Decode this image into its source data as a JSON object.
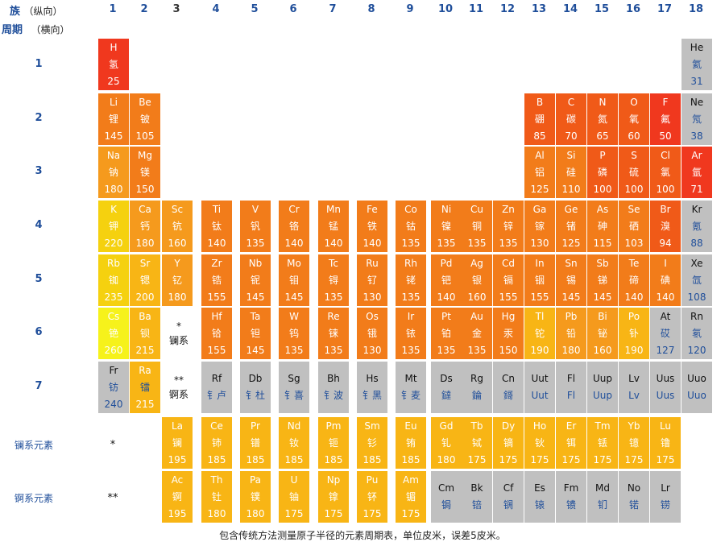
{
  "header": {
    "group_label": "族",
    "group_sub": "（纵向）",
    "period_label": "周期",
    "period_sub": "（横向）"
  },
  "groups": [
    "1",
    "2",
    "3",
    "4",
    "5",
    "6",
    "7",
    "8",
    "9",
    "10",
    "11",
    "12",
    "13",
    "14",
    "15",
    "16",
    "17",
    "18"
  ],
  "periods": [
    "1",
    "2",
    "3",
    "4",
    "5",
    "6",
    "7"
  ],
  "series_labels": {
    "lanthanides": "镧系元素",
    "actinides": "锕系元素",
    "lan_marker": "*",
    "act_marker": "**"
  },
  "notes": {
    "lan": [
      "*",
      "镧系"
    ],
    "act": [
      "**",
      "锕系"
    ]
  },
  "colors": {
    "red": "#f0381e",
    "redorange": "#f05a18",
    "orange": "#f27c1a",
    "lightorange": "#f59a1d",
    "amber": "#f8b515",
    "yellow": "#f5d10f",
    "brightyellow": "#f6f21b",
    "gray": "#c0c0c0"
  },
  "elements": [
    {
      "s": "H",
      "n": "氢",
      "v": "25",
      "row": 1,
      "col": 1,
      "c": "red"
    },
    {
      "s": "He",
      "n": "氦",
      "v": "31",
      "row": 1,
      "col": 18,
      "c": "gray"
    },
    {
      "s": "Li",
      "n": "锂",
      "v": "145",
      "row": 2,
      "col": 1,
      "c": "orange"
    },
    {
      "s": "Be",
      "n": "铍",
      "v": "105",
      "row": 2,
      "col": 2,
      "c": "orange"
    },
    {
      "s": "B",
      "n": "硼",
      "v": "85",
      "row": 2,
      "col": 13,
      "c": "redorange"
    },
    {
      "s": "C",
      "n": "碳",
      "v": "70",
      "row": 2,
      "col": 14,
      "c": "redorange"
    },
    {
      "s": "N",
      "n": "氮",
      "v": "65",
      "row": 2,
      "col": 15,
      "c": "redorange"
    },
    {
      "s": "O",
      "n": "氧",
      "v": "60",
      "row": 2,
      "col": 16,
      "c": "redorange"
    },
    {
      "s": "F",
      "n": "氟",
      "v": "50",
      "row": 2,
      "col": 17,
      "c": "red"
    },
    {
      "s": "Ne",
      "n": "氖",
      "v": "38",
      "row": 2,
      "col": 18,
      "c": "gray"
    },
    {
      "s": "Na",
      "n": "钠",
      "v": "180",
      "row": 3,
      "col": 1,
      "c": "lightorange"
    },
    {
      "s": "Mg",
      "n": "镁",
      "v": "150",
      "row": 3,
      "col": 2,
      "c": "orange"
    },
    {
      "s": "Al",
      "n": "铝",
      "v": "125",
      "row": 3,
      "col": 13,
      "c": "orange"
    },
    {
      "s": "Si",
      "n": "硅",
      "v": "110",
      "row": 3,
      "col": 14,
      "c": "orange"
    },
    {
      "s": "P",
      "n": "磷",
      "v": "100",
      "row": 3,
      "col": 15,
      "c": "redorange"
    },
    {
      "s": "S",
      "n": "硫",
      "v": "100",
      "row": 3,
      "col": 16,
      "c": "redorange"
    },
    {
      "s": "Cl",
      "n": "氯",
      "v": "100",
      "row": 3,
      "col": 17,
      "c": "redorange"
    },
    {
      "s": "Ar",
      "n": "氩",
      "v": "71",
      "row": 3,
      "col": 18,
      "c": "red"
    },
    {
      "s": "K",
      "n": "钾",
      "v": "220",
      "row": 4,
      "col": 1,
      "c": "yellow"
    },
    {
      "s": "Ca",
      "n": "钙",
      "v": "180",
      "row": 4,
      "col": 2,
      "c": "lightorange"
    },
    {
      "s": "Sc",
      "n": "钪",
      "v": "160",
      "row": 4,
      "col": 3,
      "c": "lightorange"
    },
    {
      "s": "Ti",
      "n": "钛",
      "v": "140",
      "row": 4,
      "col": 4,
      "c": "orange"
    },
    {
      "s": "V",
      "n": "钒",
      "v": "135",
      "row": 4,
      "col": 5,
      "c": "orange"
    },
    {
      "s": "Cr",
      "n": "铬",
      "v": "140",
      "row": 4,
      "col": 6,
      "c": "orange"
    },
    {
      "s": "Mn",
      "n": "锰",
      "v": "140",
      "row": 4,
      "col": 7,
      "c": "orange"
    },
    {
      "s": "Fe",
      "n": "铁",
      "v": "140",
      "row": 4,
      "col": 8,
      "c": "orange"
    },
    {
      "s": "Co",
      "n": "钴",
      "v": "135",
      "row": 4,
      "col": 9,
      "c": "orange"
    },
    {
      "s": "Ni",
      "n": "镍",
      "v": "135",
      "row": 4,
      "col": 10,
      "c": "orange"
    },
    {
      "s": "Cu",
      "n": "铜",
      "v": "135",
      "row": 4,
      "col": 11,
      "c": "orange"
    },
    {
      "s": "Zn",
      "n": "锌",
      "v": "135",
      "row": 4,
      "col": 12,
      "c": "orange"
    },
    {
      "s": "Ga",
      "n": "镓",
      "v": "130",
      "row": 4,
      "col": 13,
      "c": "orange"
    },
    {
      "s": "Ge",
      "n": "锗",
      "v": "125",
      "row": 4,
      "col": 14,
      "c": "orange"
    },
    {
      "s": "As",
      "n": "砷",
      "v": "115",
      "row": 4,
      "col": 15,
      "c": "orange"
    },
    {
      "s": "Se",
      "n": "硒",
      "v": "103",
      "row": 4,
      "col": 16,
      "c": "orange"
    },
    {
      "s": "Br",
      "n": "溴",
      "v": "94",
      "row": 4,
      "col": 17,
      "c": "redorange"
    },
    {
      "s": "Kr",
      "n": "氪",
      "v": "88",
      "row": 4,
      "col": 18,
      "c": "gray"
    },
    {
      "s": "Rb",
      "n": "铷",
      "v": "235",
      "row": 5,
      "col": 1,
      "c": "yellow"
    },
    {
      "s": "Sr",
      "n": "锶",
      "v": "200",
      "row": 5,
      "col": 2,
      "c": "amber"
    },
    {
      "s": "Y",
      "n": "钇",
      "v": "180",
      "row": 5,
      "col": 3,
      "c": "lightorange"
    },
    {
      "s": "Zr",
      "n": "锆",
      "v": "155",
      "row": 5,
      "col": 4,
      "c": "orange"
    },
    {
      "s": "Nb",
      "n": "铌",
      "v": "145",
      "row": 5,
      "col": 5,
      "c": "orange"
    },
    {
      "s": "Mo",
      "n": "钼",
      "v": "145",
      "row": 5,
      "col": 6,
      "c": "orange"
    },
    {
      "s": "Tc",
      "n": "锝",
      "v": "135",
      "row": 5,
      "col": 7,
      "c": "orange"
    },
    {
      "s": "Ru",
      "n": "钌",
      "v": "130",
      "row": 5,
      "col": 8,
      "c": "orange"
    },
    {
      "s": "Rh",
      "n": "铑",
      "v": "135",
      "row": 5,
      "col": 9,
      "c": "orange"
    },
    {
      "s": "Pd",
      "n": "钯",
      "v": "140",
      "row": 5,
      "col": 10,
      "c": "orange"
    },
    {
      "s": "Ag",
      "n": "银",
      "v": "160",
      "row": 5,
      "col": 11,
      "c": "orange"
    },
    {
      "s": "Cd",
      "n": "镉",
      "v": "155",
      "row": 5,
      "col": 12,
      "c": "orange"
    },
    {
      "s": "In",
      "n": "铟",
      "v": "155",
      "row": 5,
      "col": 13,
      "c": "orange"
    },
    {
      "s": "Sn",
      "n": "锡",
      "v": "145",
      "row": 5,
      "col": 14,
      "c": "orange"
    },
    {
      "s": "Sb",
      "n": "锑",
      "v": "145",
      "row": 5,
      "col": 15,
      "c": "orange"
    },
    {
      "s": "Te",
      "n": "碲",
      "v": "140",
      "row": 5,
      "col": 16,
      "c": "orange"
    },
    {
      "s": "I",
      "n": "碘",
      "v": "140",
      "row": 5,
      "col": 17,
      "c": "orange"
    },
    {
      "s": "Xe",
      "n": "氙",
      "v": "108",
      "row": 5,
      "col": 18,
      "c": "gray"
    },
    {
      "s": "Cs",
      "n": "铯",
      "v": "260",
      "row": 6,
      "col": 1,
      "c": "brightyellow"
    },
    {
      "s": "Ba",
      "n": "钡",
      "v": "215",
      "row": 6,
      "col": 2,
      "c": "amber"
    },
    {
      "s": "Hf",
      "n": "铪",
      "v": "155",
      "row": 6,
      "col": 4,
      "c": "orange"
    },
    {
      "s": "Ta",
      "n": "钽",
      "v": "145",
      "row": 6,
      "col": 5,
      "c": "orange"
    },
    {
      "s": "W",
      "n": "钨",
      "v": "135",
      "row": 6,
      "col": 6,
      "c": "orange"
    },
    {
      "s": "Re",
      "n": "铼",
      "v": "135",
      "row": 6,
      "col": 7,
      "c": "orange"
    },
    {
      "s": "Os",
      "n": "锇",
      "v": "130",
      "row": 6,
      "col": 8,
      "c": "orange"
    },
    {
      "s": "Ir",
      "n": "铱",
      "v": "135",
      "row": 6,
      "col": 9,
      "c": "orange"
    },
    {
      "s": "Pt",
      "n": "铂",
      "v": "135",
      "row": 6,
      "col": 10,
      "c": "orange"
    },
    {
      "s": "Au",
      "n": "金",
      "v": "135",
      "row": 6,
      "col": 11,
      "c": "orange"
    },
    {
      "s": "Hg",
      "n": "汞",
      "v": "150",
      "row": 6,
      "col": 12,
      "c": "orange"
    },
    {
      "s": "Tl",
      "n": "铊",
      "v": "190",
      "row": 6,
      "col": 13,
      "c": "amber"
    },
    {
      "s": "Pb",
      "n": "铅",
      "v": "180",
      "row": 6,
      "col": 14,
      "c": "lightorange"
    },
    {
      "s": "Bi",
      "n": "铋",
      "v": "160",
      "row": 6,
      "col": 15,
      "c": "lightorange"
    },
    {
      "s": "Po",
      "n": "钋",
      "v": "190",
      "row": 6,
      "col": 16,
      "c": "amber"
    },
    {
      "s": "At",
      "n": "砹",
      "v": "127",
      "row": 6,
      "col": 17,
      "c": "gray"
    },
    {
      "s": "Rn",
      "n": "氡",
      "v": "120",
      "row": 6,
      "col": 18,
      "c": "gray"
    },
    {
      "s": "Fr",
      "n": "钫",
      "v": "240",
      "row": 7,
      "col": 1,
      "c": "gray"
    },
    {
      "s": "Ra",
      "n": "镭",
      "v": "215",
      "row": 7,
      "col": 2,
      "c": "amber"
    },
    {
      "s": "Rf",
      "n": "钅卢",
      "v": "",
      "row": 7,
      "col": 4,
      "c": "gray"
    },
    {
      "s": "Db",
      "n": "钅杜",
      "v": "",
      "row": 7,
      "col": 5,
      "c": "gray"
    },
    {
      "s": "Sg",
      "n": "钅喜",
      "v": "",
      "row": 7,
      "col": 6,
      "c": "gray"
    },
    {
      "s": "Bh",
      "n": "钅波",
      "v": "",
      "row": 7,
      "col": 7,
      "c": "gray"
    },
    {
      "s": "Hs",
      "n": "钅黑",
      "v": "",
      "row": 7,
      "col": 8,
      "c": "gray"
    },
    {
      "s": "Mt",
      "n": "钅麦",
      "v": "",
      "row": 7,
      "col": 9,
      "c": "gray"
    },
    {
      "s": "Ds",
      "n": "鐽",
      "v": "",
      "row": 7,
      "col": 10,
      "c": "gray"
    },
    {
      "s": "Rg",
      "n": "錀",
      "v": "",
      "row": 7,
      "col": 11,
      "c": "gray"
    },
    {
      "s": "Cn",
      "n": "鎶",
      "v": "",
      "row": 7,
      "col": 12,
      "c": "gray"
    },
    {
      "s": "Uut",
      "n": "Uut",
      "v": "",
      "row": 7,
      "col": 13,
      "c": "gray"
    },
    {
      "s": "Fl",
      "n": "Fl",
      "v": "",
      "row": 7,
      "col": 14,
      "c": "gray"
    },
    {
      "s": "Uup",
      "n": "Uup",
      "v": "",
      "row": 7,
      "col": 15,
      "c": "gray"
    },
    {
      "s": "Lv",
      "n": "Lv",
      "v": "",
      "row": 7,
      "col": 16,
      "c": "gray"
    },
    {
      "s": "Uus",
      "n": "Uus",
      "v": "",
      "row": 7,
      "col": 17,
      "c": "gray"
    },
    {
      "s": "Uuo",
      "n": "Uuo",
      "v": "",
      "row": 7,
      "col": 18,
      "c": "gray"
    },
    {
      "s": "La",
      "n": "镧",
      "v": "195",
      "row": 8,
      "col": 3,
      "c": "amber"
    },
    {
      "s": "Ce",
      "n": "铈",
      "v": "185",
      "row": 8,
      "col": 4,
      "c": "amber"
    },
    {
      "s": "Pr",
      "n": "镨",
      "v": "185",
      "row": 8,
      "col": 5,
      "c": "amber"
    },
    {
      "s": "Nd",
      "n": "钕",
      "v": "185",
      "row": 8,
      "col": 6,
      "c": "amber"
    },
    {
      "s": "Pm",
      "n": "钷",
      "v": "185",
      "row": 8,
      "col": 7,
      "c": "amber"
    },
    {
      "s": "Sm",
      "n": "钐",
      "v": "185",
      "row": 8,
      "col": 8,
      "c": "amber"
    },
    {
      "s": "Eu",
      "n": "铕",
      "v": "185",
      "row": 8,
      "col": 9,
      "c": "amber"
    },
    {
      "s": "Gd",
      "n": "钆",
      "v": "180",
      "row": 8,
      "col": 10,
      "c": "amber"
    },
    {
      "s": "Tb",
      "n": "铽",
      "v": "175",
      "row": 8,
      "col": 11,
      "c": "amber"
    },
    {
      "s": "Dy",
      "n": "镝",
      "v": "175",
      "row": 8,
      "col": 12,
      "c": "amber"
    },
    {
      "s": "Ho",
      "n": "钬",
      "v": "175",
      "row": 8,
      "col": 13,
      "c": "amber"
    },
    {
      "s": "Er",
      "n": "铒",
      "v": "175",
      "row": 8,
      "col": 14,
      "c": "amber"
    },
    {
      "s": "Tm",
      "n": "铥",
      "v": "175",
      "row": 8,
      "col": 15,
      "c": "amber"
    },
    {
      "s": "Yb",
      "n": "镱",
      "v": "175",
      "row": 8,
      "col": 16,
      "c": "amber"
    },
    {
      "s": "Lu",
      "n": "镥",
      "v": "175",
      "row": 8,
      "col": 17,
      "c": "amber"
    },
    {
      "s": "Ac",
      "n": "锕",
      "v": "195",
      "row": 9,
      "col": 3,
      "c": "amber"
    },
    {
      "s": "Th",
      "n": "钍",
      "v": "180",
      "row": 9,
      "col": 4,
      "c": "amber"
    },
    {
      "s": "Pa",
      "n": "镤",
      "v": "180",
      "row": 9,
      "col": 5,
      "c": "amber"
    },
    {
      "s": "U",
      "n": "铀",
      "v": "175",
      "row": 9,
      "col": 6,
      "c": "amber"
    },
    {
      "s": "Np",
      "n": "镎",
      "v": "175",
      "row": 9,
      "col": 7,
      "c": "amber"
    },
    {
      "s": "Pu",
      "n": "钚",
      "v": "175",
      "row": 9,
      "col": 8,
      "c": "amber"
    },
    {
      "s": "Am",
      "n": "镅",
      "v": "175",
      "row": 9,
      "col": 9,
      "c": "amber"
    },
    {
      "s": "Cm",
      "n": "锔",
      "v": "",
      "row": 9,
      "col": 10,
      "c": "gray"
    },
    {
      "s": "Bk",
      "n": "锫",
      "v": "",
      "row": 9,
      "col": 11,
      "c": "gray"
    },
    {
      "s": "Cf",
      "n": "锎",
      "v": "",
      "row": 9,
      "col": 12,
      "c": "gray"
    },
    {
      "s": "Es",
      "n": "锿",
      "v": "",
      "row": 9,
      "col": 13,
      "c": "gray"
    },
    {
      "s": "Fm",
      "n": "镄",
      "v": "",
      "row": 9,
      "col": 14,
      "c": "gray"
    },
    {
      "s": "Md",
      "n": "钔",
      "v": "",
      "row": 9,
      "col": 15,
      "c": "gray"
    },
    {
      "s": "No",
      "n": "锘",
      "v": "",
      "row": 9,
      "col": 16,
      "c": "gray"
    },
    {
      "s": "Lr",
      "n": "铹",
      "v": "",
      "row": 9,
      "col": 17,
      "c": "gray"
    }
  ],
  "footer": "包含传统方法测量原子半径的元素周期表，单位皮米，误差5皮米。"
}
